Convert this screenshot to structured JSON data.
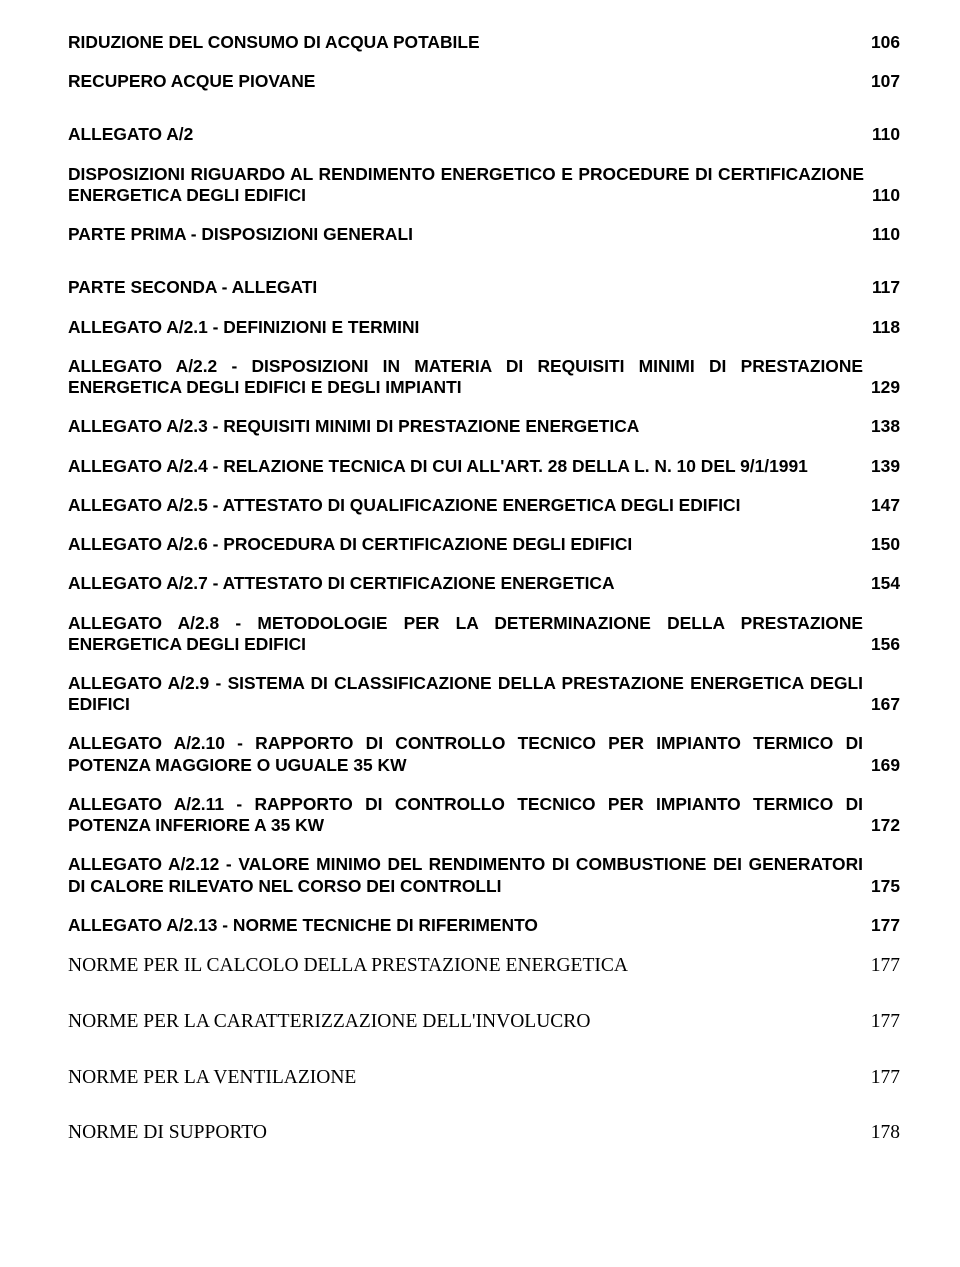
{
  "entries": [
    {
      "label": "RIDUZIONE DEL CONSUMO DI ACQUA POTABILE",
      "page": "106",
      "gap": "md"
    },
    {
      "label": "RECUPERO ACQUE PIOVANE",
      "page": "107",
      "gap": "lg"
    },
    {
      "label": "ALLEGATO A/2",
      "page": "110",
      "gap": "md"
    },
    {
      "label": "DISPOSIZIONI RIGUARDO AL RENDIMENTO ENERGETICO E PROCEDURE DI CERTIFICAZIONE ENERGETICA DEGLI EDIFICI",
      "page": "110",
      "gap": "md"
    },
    {
      "label": "PARTE PRIMA - DISPOSIZIONI GENERALI",
      "page": "110",
      "gap": "lg"
    },
    {
      "label": "PARTE SECONDA - ALLEGATI",
      "page": "117",
      "gap": "md"
    },
    {
      "label": "ALLEGATO A/2.1 - DEFINIZIONI E TERMINI",
      "page": "118",
      "gap": "md"
    },
    {
      "label": "ALLEGATO A/2.2 - DISPOSIZIONI IN MATERIA DI REQUISITI MINIMI DI PRESTAZIONE ENERGETICA DEGLI EDIFICI E DEGLI IMPIANTI",
      "page": "129",
      "gap": "md"
    },
    {
      "label": "ALLEGATO A/2.3 - REQUISITI MINIMI DI PRESTAZIONE ENERGETICA",
      "page": "138",
      "gap": "md"
    },
    {
      "label": "ALLEGATO A/2.4 - RELAZIONE TECNICA DI CUI ALL'ART. 28 DELLA L. N. 10 DEL 9/1/1991",
      "page": "139",
      "gap": "md"
    },
    {
      "label": "ALLEGATO A/2.5 - ATTESTATO DI QUALIFICAZIONE ENERGETICA DEGLI EDIFICI",
      "page": "147",
      "gap": "md"
    },
    {
      "label": "ALLEGATO A/2.6 - PROCEDURA DI CERTIFICAZIONE DEGLI EDIFICI",
      "page": "150",
      "gap": "md"
    },
    {
      "label": "ALLEGATO A/2.7 - ATTESTATO DI CERTIFICAZIONE ENERGETICA",
      "page": "154",
      "gap": "md"
    },
    {
      "label": "ALLEGATO A/2.8 - METODOLOGIE PER LA DETERMINAZIONE DELLA PRESTAZIONE ENERGETICA DEGLI EDIFICI",
      "page": "156",
      "gap": "md"
    },
    {
      "label": "ALLEGATO A/2.9 - SISTEMA DI CLASSIFICAZIONE DELLA PRESTAZIONE ENERGETICA DEGLI EDIFICI",
      "page": "167",
      "gap": "md"
    },
    {
      "label": "ALLEGATO A/2.10 - RAPPORTO DI CONTROLLO TECNICO PER IMPIANTO TERMICO DI POTENZA MAGGIORE O UGUALE 35 KW",
      "page": "169",
      "gap": "md"
    },
    {
      "label": "ALLEGATO A/2.11 - RAPPORTO DI CONTROLLO TECNICO PER IMPIANTO TERMICO DI POTENZA INFERIORE A 35 KW",
      "page": "172",
      "gap": "md"
    },
    {
      "label": "ALLEGATO A/2.12 - VALORE MINIMO DEL RENDIMENTO DI COMBUSTIONE DEI GENERATORI DI CALORE RILEVATO NEL CORSO DEI CONTROLLI",
      "page": "175",
      "gap": "md"
    },
    {
      "label": "ALLEGATO A/2.13 - NORME TECNICHE DI RIFERIMENTO",
      "page": "177",
      "gap": "md"
    },
    {
      "label": "NORME PER IL CALCOLO DELLA PRESTAZIONE ENERGETICA",
      "page": "177",
      "gap": "lg",
      "serif": true
    },
    {
      "label": "NORME PER LA CARATTERIZZAZIONE DELL'INVOLUCRO",
      "page": "177",
      "gap": "lg",
      "serif": true
    },
    {
      "label": "NORME PER LA VENTILAZIONE",
      "page": "177",
      "gap": "lg",
      "serif": true
    },
    {
      "label": "NORME DI SUPPORTO",
      "page": "178",
      "gap": "md",
      "serif": true
    }
  ]
}
